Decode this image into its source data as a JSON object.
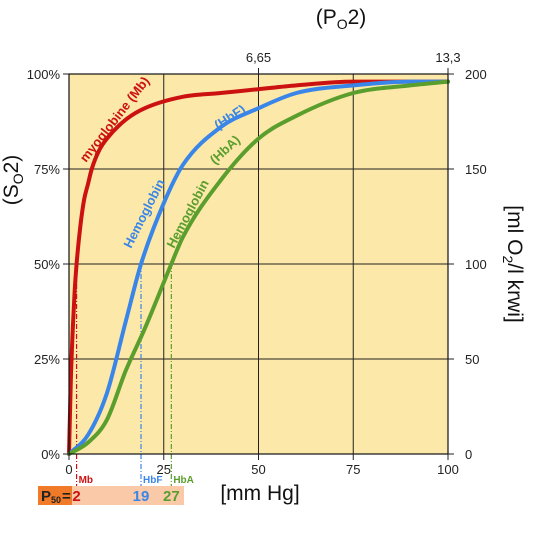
{
  "chart_data": {
    "type": "line",
    "title": "(PO2)",
    "top_axis": {
      "title": "(PO2)",
      "ticks": [
        {
          "x": 50,
          "label": "6,65"
        },
        {
          "x": 100,
          "label": "13,3"
        }
      ]
    },
    "x_axis": {
      "label": "[mm Hg]",
      "xlim": [
        0,
        100
      ],
      "ticks": [
        0,
        25,
        50,
        75,
        100
      ]
    },
    "y_left": {
      "label": "(SO2)",
      "ylim": [
        0,
        100
      ],
      "ticks": [
        {
          "v": 0,
          "label": "0%"
        },
        {
          "v": 25,
          "label": "25%"
        },
        {
          "v": 50,
          "label": "50%"
        },
        {
          "v": 75,
          "label": "75%"
        },
        {
          "v": 100,
          "label": "100%"
        }
      ]
    },
    "y_right": {
      "label": "[ml O2/l krwi]",
      "ticks": [
        {
          "v": 0,
          "label": "0"
        },
        {
          "v": 25,
          "label": "50"
        },
        {
          "v": 50,
          "label": "100"
        },
        {
          "v": 75,
          "label": "150"
        },
        {
          "v": 100,
          "label": "200"
        }
      ]
    },
    "grid": true,
    "background": "#fce8a8",
    "series": [
      {
        "name": "myoglobine (Mb)",
        "label": "myoglobine  (Mb)",
        "color": "#cc1111",
        "p50": 2,
        "p50_tag": "Mb",
        "x": [
          0,
          0.5,
          1,
          1.5,
          2,
          3,
          4,
          5,
          6,
          8,
          10,
          15,
          20,
          30,
          40,
          50,
          60,
          75,
          100
        ],
        "y": [
          0,
          20,
          33,
          43,
          50,
          60,
          67,
          71,
          75,
          80,
          83,
          88,
          91,
          94,
          95,
          96,
          97,
          98,
          98
        ]
      },
      {
        "name": "Hemoglobin (HbF)",
        "label_main": "Hemoglobin",
        "label_paren": "(HbF)",
        "color": "#3a86e8",
        "p50": 19,
        "p50_tag": "HbF",
        "x": [
          0,
          5,
          10,
          15,
          19,
          25,
          30,
          40,
          50,
          60,
          75,
          90,
          100
        ],
        "y": [
          0,
          5,
          16,
          35,
          50,
          66,
          76,
          86,
          91,
          95,
          97,
          98,
          98
        ]
      },
      {
        "name": "Hemoglobin (HbA)",
        "label_main": "Hemoglobin",
        "label_paren": "(HbA)",
        "color": "#5a9e2e",
        "p50": 27,
        "p50_tag": "HbA",
        "x": [
          0,
          5,
          10,
          15,
          20,
          27,
          30,
          40,
          50,
          60,
          75,
          90,
          100
        ],
        "y": [
          0,
          3,
          9,
          22,
          33,
          50,
          57,
          72,
          83,
          89,
          95,
          97,
          98
        ]
      }
    ],
    "p50_box": {
      "label_main": "P",
      "label_sub": "50",
      "label_eq": "=",
      "values": [
        {
          "text": "2",
          "color": "#cc1111"
        },
        {
          "text": "19",
          "color": "#3a86e8"
        },
        {
          "text": "27",
          "color": "#5a9e2e"
        }
      ]
    }
  }
}
